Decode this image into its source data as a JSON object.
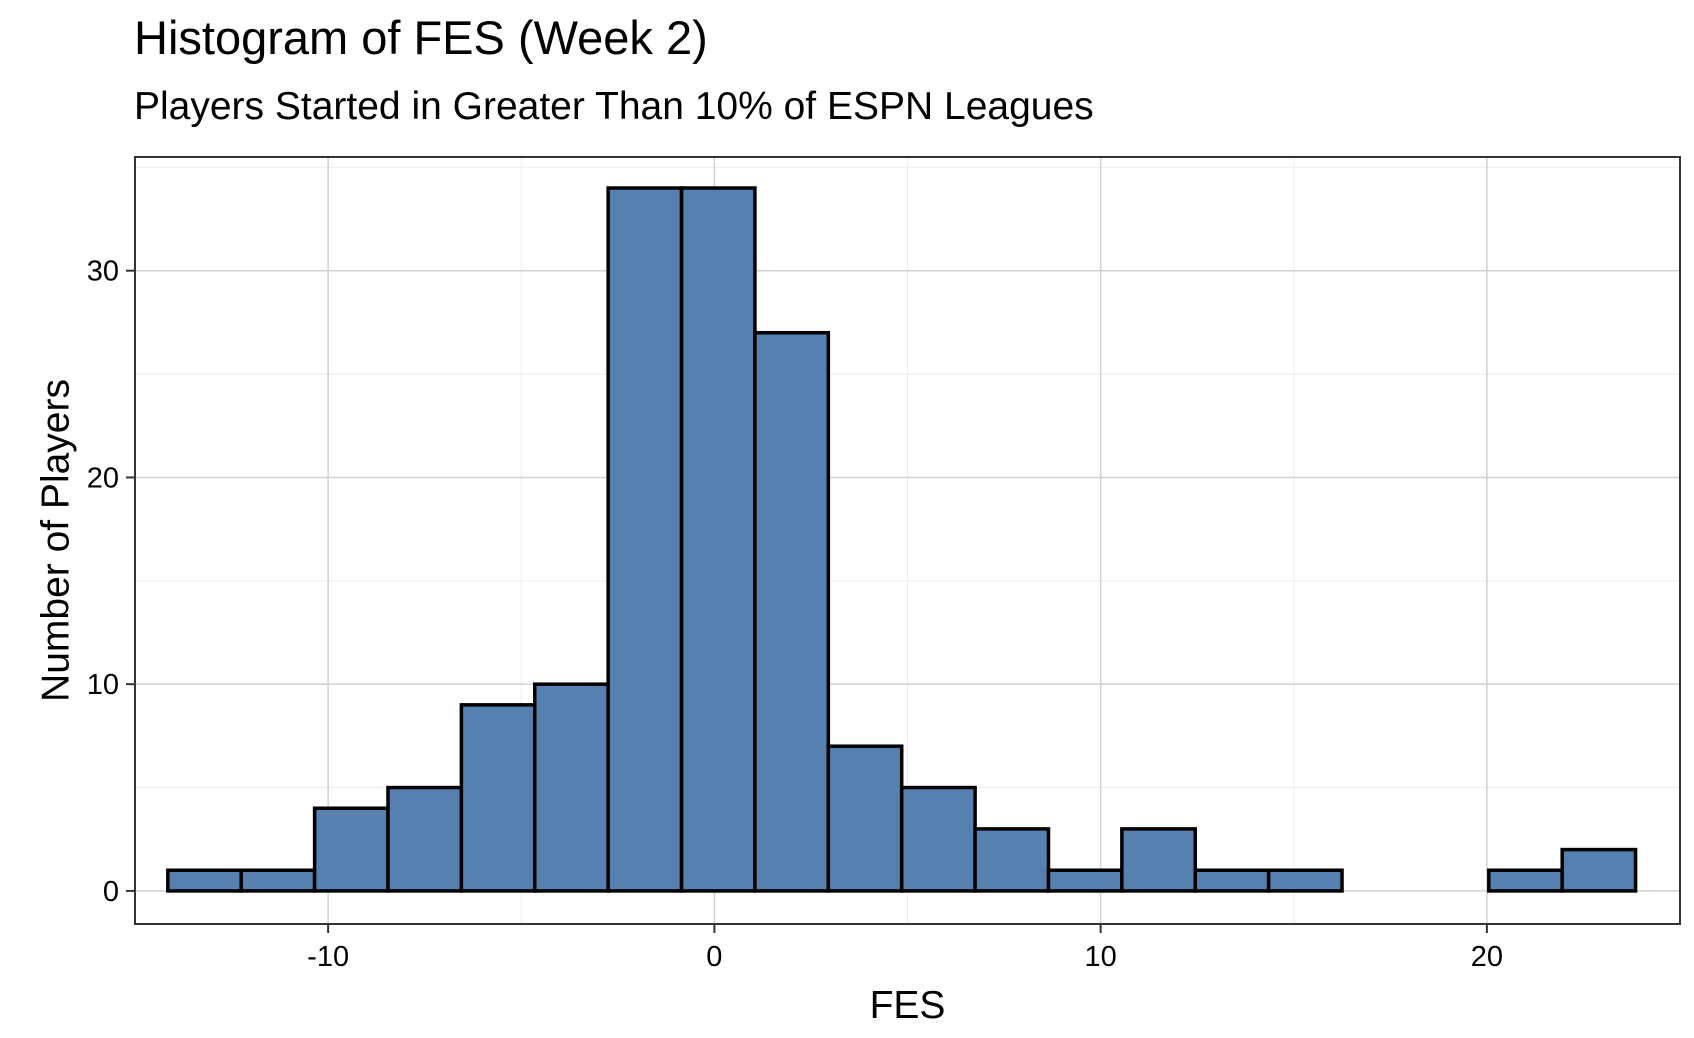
{
  "chart_data": {
    "type": "bar",
    "title": "Histogram of FES (Week 2)",
    "subtitle": "Players Started in Greater Than 10% of ESPN Leagues",
    "xlabel": "FES",
    "ylabel": "Number of Players",
    "xlim": [
      -15,
      25
    ],
    "ylim": [
      -1.6,
      35.5
    ],
    "x_ticks": [
      -10,
      0,
      10,
      20
    ],
    "y_ticks": [
      0,
      10,
      20,
      30
    ],
    "grid": true,
    "legend": "none",
    "bin_width": 1.9,
    "bins": [
      {
        "x_start": -14.15,
        "x_end": -12.25,
        "count": 1
      },
      {
        "x_start": -12.25,
        "x_end": -10.35,
        "count": 1
      },
      {
        "x_start": -10.35,
        "x_end": -8.45,
        "count": 4
      },
      {
        "x_start": -8.45,
        "x_end": -6.55,
        "count": 5
      },
      {
        "x_start": -6.55,
        "x_end": -4.65,
        "count": 9
      },
      {
        "x_start": -4.65,
        "x_end": -2.75,
        "count": 10
      },
      {
        "x_start": -2.75,
        "x_end": -0.85,
        "count": 34
      },
      {
        "x_start": -0.85,
        "x_end": 1.05,
        "count": 34
      },
      {
        "x_start": 1.05,
        "x_end": 2.95,
        "count": 27
      },
      {
        "x_start": 2.95,
        "x_end": 4.85,
        "count": 7
      },
      {
        "x_start": 4.85,
        "x_end": 6.75,
        "count": 5
      },
      {
        "x_start": 6.75,
        "x_end": 8.65,
        "count": 3
      },
      {
        "x_start": 8.65,
        "x_end": 10.55,
        "count": 1
      },
      {
        "x_start": 10.55,
        "x_end": 12.45,
        "count": 3
      },
      {
        "x_start": 12.45,
        "x_end": 14.35,
        "count": 1
      },
      {
        "x_start": 14.35,
        "x_end": 16.25,
        "count": 1
      },
      {
        "x_start": 16.25,
        "x_end": 18.15,
        "count": 0
      },
      {
        "x_start": 18.15,
        "x_end": 20.05,
        "count": 0
      },
      {
        "x_start": 20.05,
        "x_end": 21.95,
        "count": 1
      },
      {
        "x_start": 21.95,
        "x_end": 23.85,
        "count": 2
      }
    ],
    "colors": {
      "bar_fill": "#5680b0",
      "bar_outline": "#000000",
      "major_grid": "#d0d0d0",
      "minor_grid": "#ebebeb",
      "panel_border": "#333333"
    }
  }
}
